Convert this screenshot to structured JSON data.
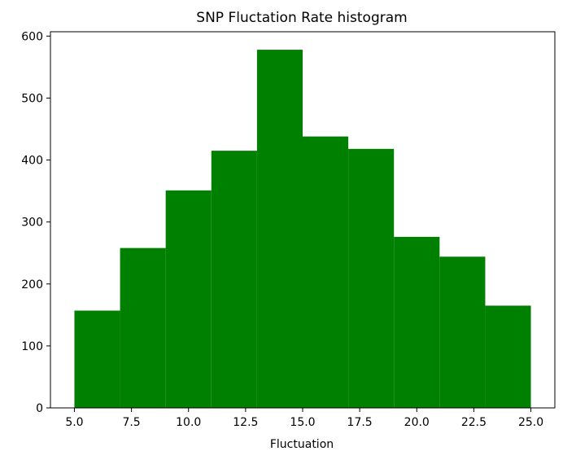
{
  "chart_data": {
    "type": "bar",
    "subtype": "histogram",
    "title": "SNP Fluctation Rate histogram",
    "xlabel": "Fluctuation",
    "ylabel": "",
    "bin_edges": [
      5,
      7,
      9,
      11,
      13,
      15,
      17,
      19,
      21,
      23,
      25
    ],
    "values": [
      157,
      258,
      351,
      415,
      578,
      438,
      418,
      276,
      244,
      165
    ],
    "xlim": [
      3.95,
      26.05
    ],
    "ylim": [
      0,
      607
    ],
    "x_ticks": [
      5.0,
      7.5,
      10.0,
      12.5,
      15.0,
      17.5,
      20.0,
      22.5,
      25.0
    ],
    "x_tick_labels": [
      "5.0",
      "7.5",
      "10.0",
      "12.5",
      "15.0",
      "17.5",
      "20.0",
      "22.5",
      "25.0"
    ],
    "y_ticks": [
      0,
      100,
      200,
      300,
      400,
      500,
      600
    ],
    "y_tick_labels": [
      "0",
      "100",
      "200",
      "300",
      "400",
      "500",
      "600"
    ],
    "bar_color": "#008000",
    "grid": false,
    "legend": "none"
  }
}
